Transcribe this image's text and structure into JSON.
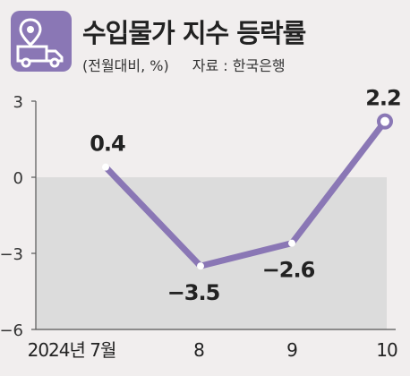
{
  "header": {
    "title": "수입물가 지수 등락률",
    "unit_note": "(전월대비, %)",
    "source": "자료 : 한국은행"
  },
  "icon": "truck-location-icon",
  "colors": {
    "accent": "#8a77b5",
    "line": "#8a77b5",
    "negative_band": "#dcdcdc",
    "background": "#f1eeee"
  },
  "chart_data": {
    "type": "line",
    "categories": [
      "2024년 7월",
      "8",
      "9",
      "10"
    ],
    "values": [
      0.4,
      -3.5,
      -2.6,
      2.2
    ],
    "data_labels": [
      "0.4",
      "−3.5",
      "−2.6",
      "2.2"
    ],
    "yticks": [
      "3",
      "0",
      "−3",
      "−6"
    ],
    "ytick_values": [
      3,
      0,
      -3,
      -6
    ],
    "ylim": [
      -6,
      3
    ],
    "grid": false,
    "legend": "none"
  }
}
